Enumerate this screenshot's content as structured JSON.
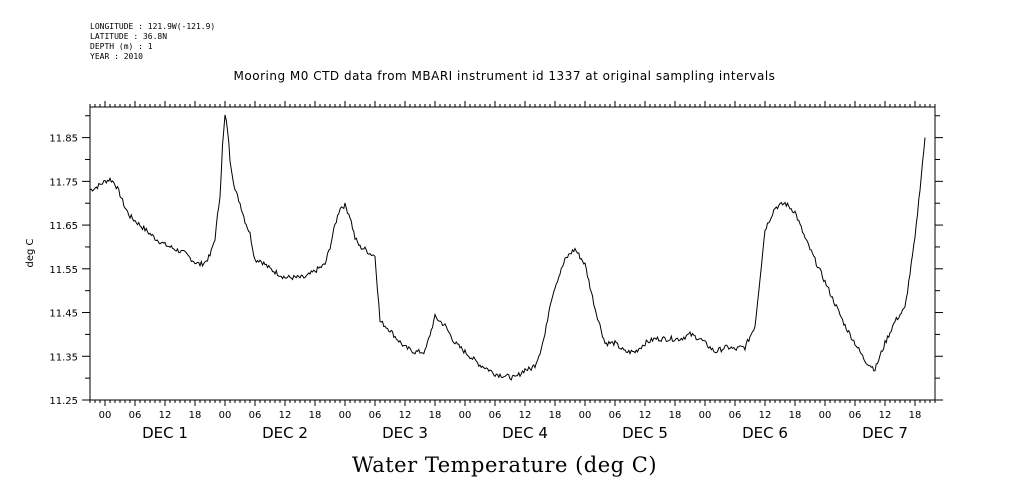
{
  "header": {
    "longitude": "LONGITUDE : 121.9W(-121.9)",
    "latitude": "LATITUDE : 36.8N",
    "depth": "DEPTH (m) : 1",
    "year": "YEAR : 2010"
  },
  "chart_data": {
    "type": "line",
    "title": "Mooring M0 CTD data from MBARI instrument id 1337 at original sampling intervals",
    "xlabel": "Water Temperature (deg C)",
    "ylabel": "deg C",
    "ylim": [
      11.25,
      11.92
    ],
    "yticks": [
      "11.25",
      "11.35",
      "11.45",
      "11.55",
      "11.65",
      "11.75",
      "11.85"
    ],
    "xlim_hours": [
      -3,
      166
    ],
    "hour_tick_labels": [
      "00",
      "06",
      "12",
      "18"
    ],
    "day_labels": [
      "DEC  1",
      "DEC  2",
      "DEC  3",
      "DEC  4",
      "DEC  5",
      "DEC  6",
      "DEC  7"
    ],
    "grid": false,
    "series": [
      {
        "x": [
          -3,
          -2,
          0,
          1,
          2,
          3,
          4,
          5,
          6,
          8,
          10,
          12,
          14,
          15,
          16,
          17,
          18,
          19,
          20,
          21,
          22,
          23,
          23.5,
          24,
          24.5,
          25,
          26,
          27,
          28,
          29,
          30,
          31,
          32,
          33,
          36,
          40,
          44,
          45,
          46,
          47,
          48,
          49,
          50,
          51,
          52,
          53,
          54,
          55,
          56,
          57,
          58,
          60,
          62,
          64,
          66,
          68,
          70,
          72,
          74,
          75,
          76,
          78,
          80,
          82,
          83,
          84,
          85,
          86,
          87,
          88,
          89,
          90,
          91,
          92,
          93,
          94,
          96,
          98,
          100,
          102,
          104,
          106,
          108,
          110,
          112,
          114,
          115,
          116,
          117,
          118,
          119,
          120,
          121,
          122,
          123,
          124,
          125,
          126,
          127,
          128,
          130,
          132,
          134,
          136,
          138,
          140,
          144,
          148,
          150,
          152,
          154,
          156,
          158,
          160,
          162,
          164
        ],
        "values": [
          11.73,
          11.735,
          11.75,
          11.755,
          11.745,
          11.72,
          11.69,
          11.67,
          11.66,
          11.64,
          11.62,
          11.605,
          11.595,
          11.59,
          11.585,
          11.575,
          11.565,
          11.56,
          11.565,
          11.58,
          11.62,
          11.72,
          11.83,
          11.9,
          11.87,
          11.8,
          11.73,
          11.7,
          11.66,
          11.63,
          11.57,
          11.57,
          11.56,
          11.55,
          11.53,
          11.53,
          11.56,
          11.6,
          11.65,
          11.69,
          11.695,
          11.67,
          11.62,
          11.6,
          11.595,
          11.585,
          11.58,
          11.43,
          11.42,
          11.41,
          11.395,
          11.37,
          11.36,
          11.36,
          11.44,
          11.42,
          11.38,
          11.36,
          11.34,
          11.33,
          11.325,
          11.31,
          11.305,
          11.3,
          11.31,
          11.32,
          11.32,
          11.33,
          11.36,
          11.4,
          11.47,
          11.51,
          11.54,
          11.57,
          11.585,
          11.595,
          11.56,
          11.46,
          11.38,
          11.38,
          11.36,
          11.36,
          11.38,
          11.39,
          11.39,
          11.39,
          11.39,
          11.395,
          11.4,
          11.395,
          11.39,
          11.38,
          11.37,
          11.36,
          11.365,
          11.37,
          11.37,
          11.365,
          11.37,
          11.37,
          11.42,
          11.64,
          11.69,
          11.7,
          11.68,
          11.62,
          11.52,
          11.42,
          11.38,
          11.34,
          11.32,
          11.38,
          11.43,
          11.46,
          11.62,
          11.85
        ]
      }
    ]
  }
}
